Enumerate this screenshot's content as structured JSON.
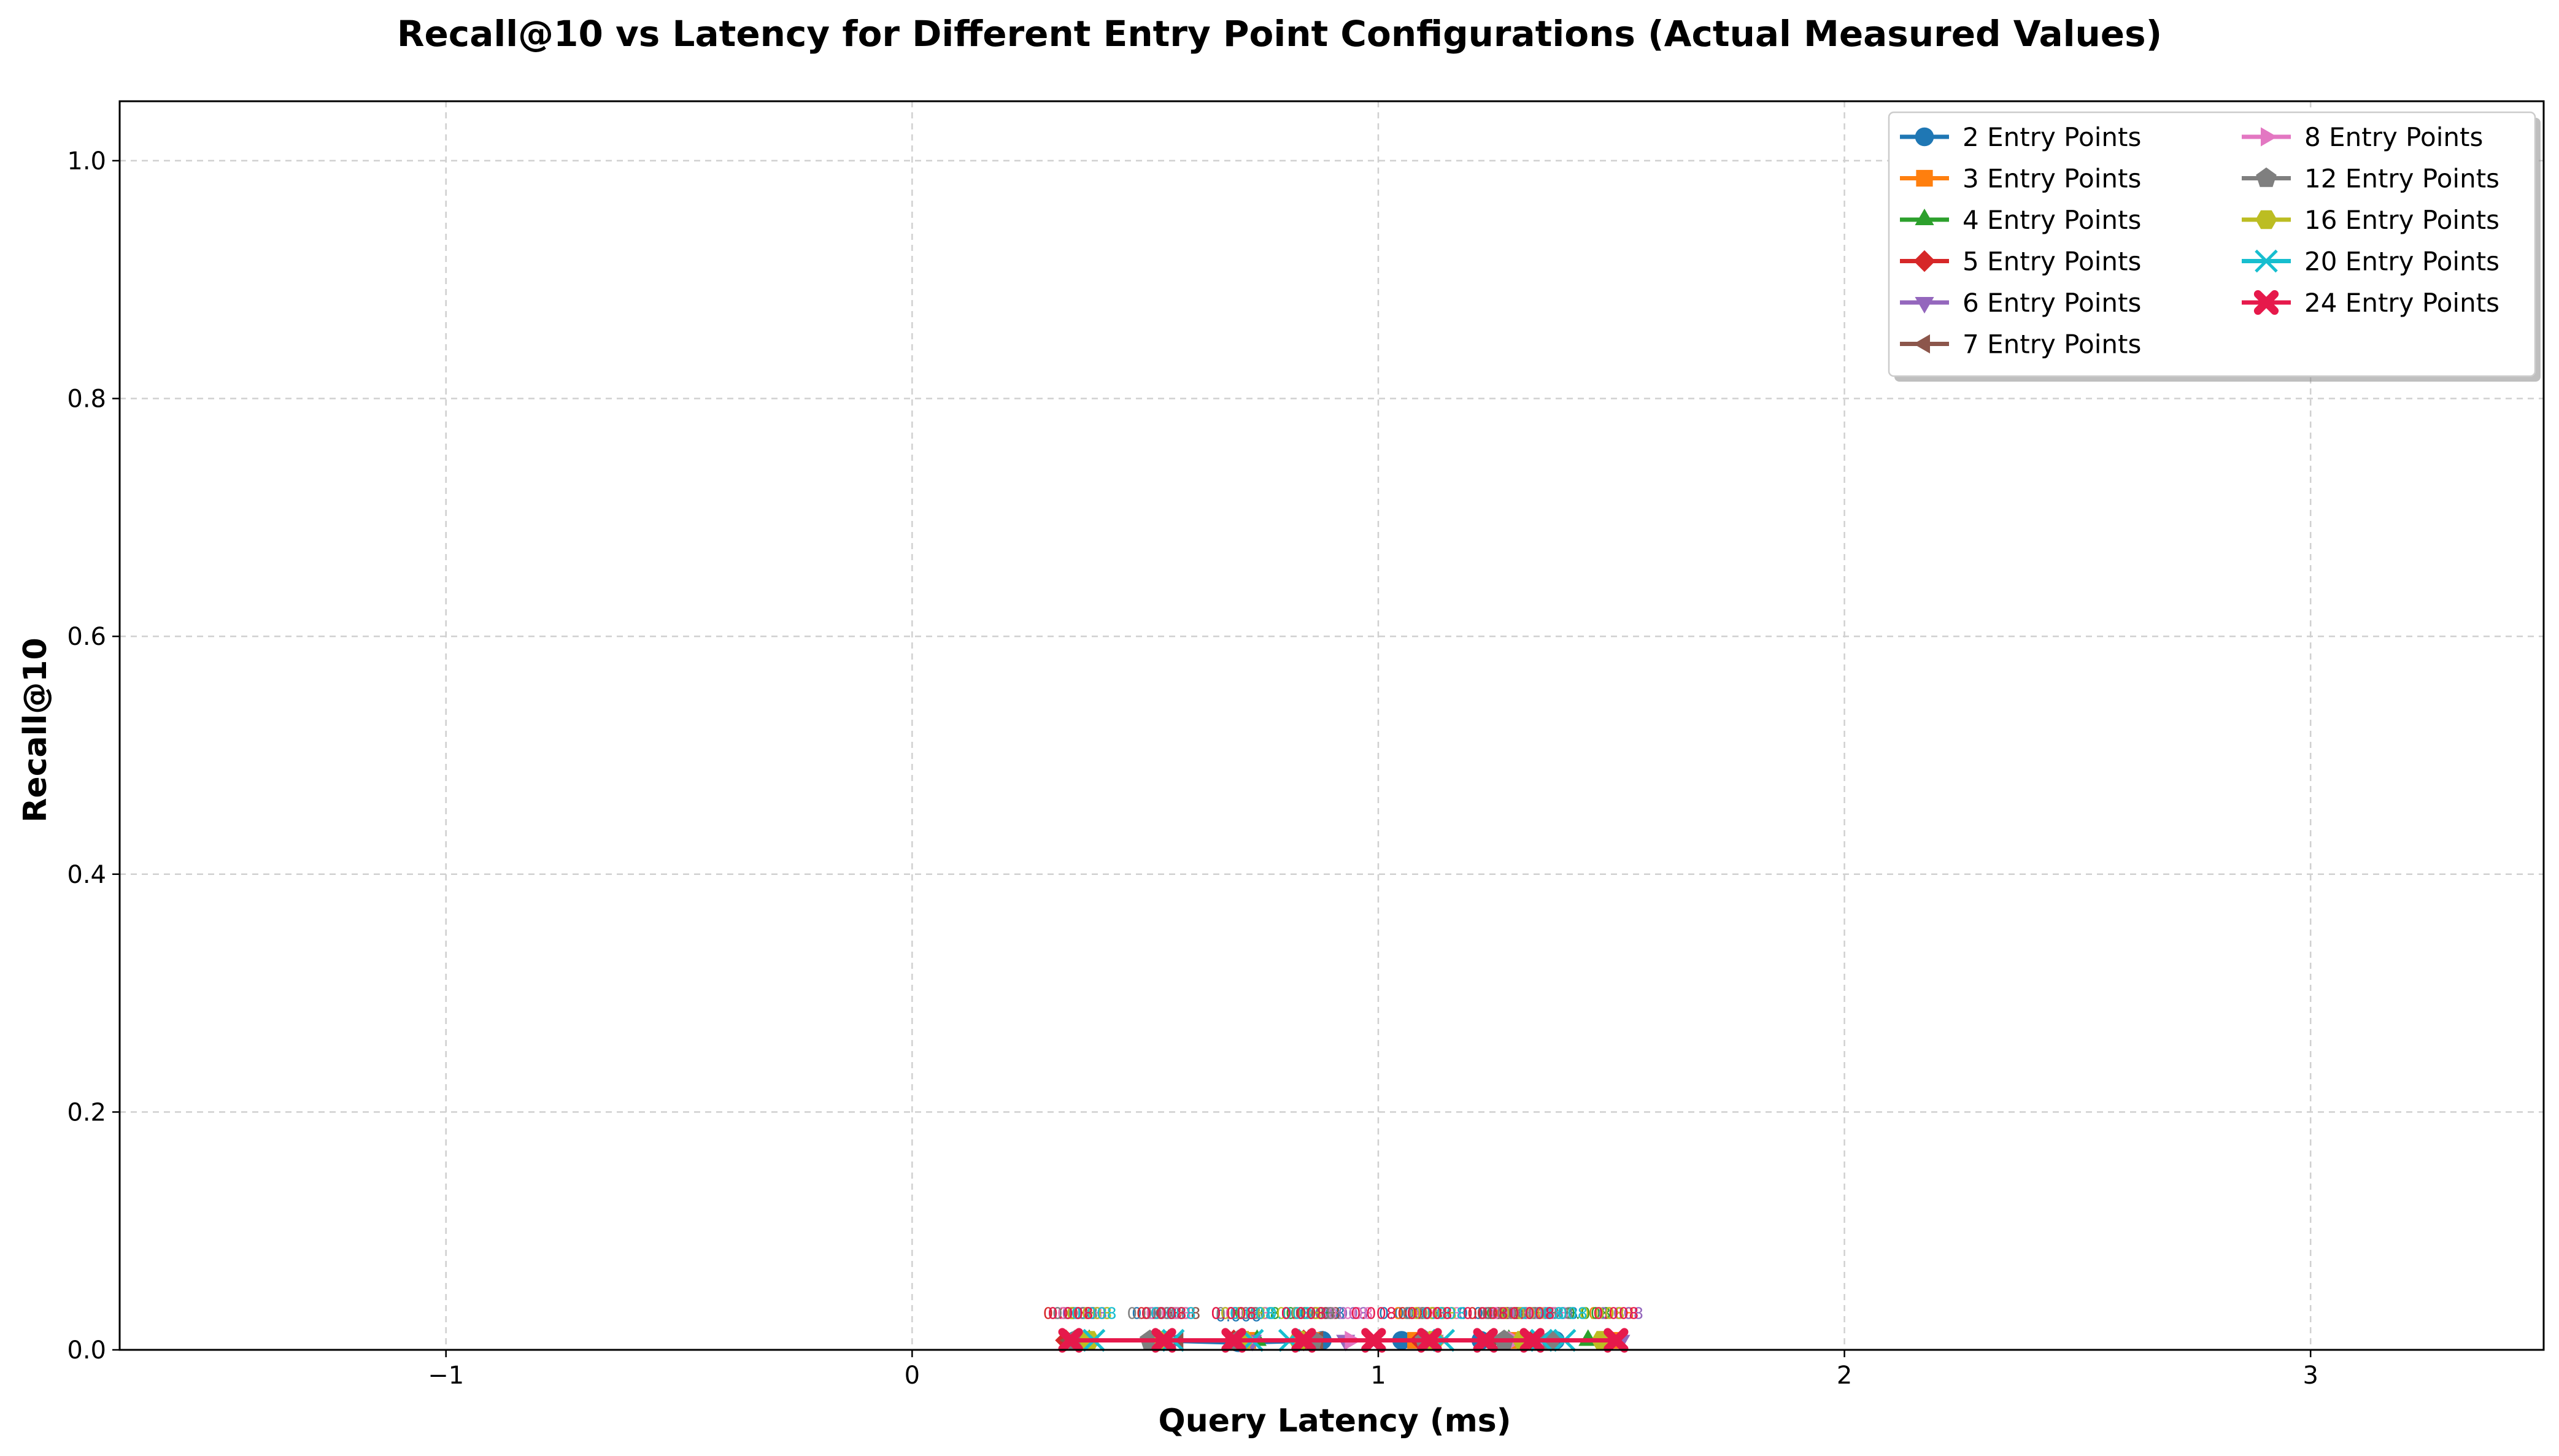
{
  "chart_data": {
    "type": "line",
    "title": "Recall@10 vs Latency for Different Entry Point Configurations (Actual Measured Values)",
    "xlabel": "Query Latency (ms)",
    "ylabel": "Recall@10",
    "xlim": [
      -1.7,
      3.5
    ],
    "ylim": [
      0.0,
      1.05
    ],
    "xticks": [
      -1,
      0,
      1,
      2,
      3
    ],
    "xtick_labels": [
      "−1",
      "0",
      "1",
      "2",
      "3"
    ],
    "yticks": [
      0.0,
      0.2,
      0.4,
      0.6,
      0.8,
      1.0
    ],
    "ytick_labels": [
      "0.0",
      "0.2",
      "0.4",
      "0.6",
      "0.8",
      "1.0"
    ],
    "grid": true,
    "legend_position": "top-right",
    "legend_columns": 2,
    "series": [
      {
        "name": "2 Entry Points",
        "color": "#1f77b4",
        "marker": "circle",
        "x": [
          0.35,
          0.52,
          0.7,
          0.88,
          1.05,
          1.22,
          1.38
        ],
        "y": [
          0.008,
          0.008,
          0.006,
          0.008,
          0.008,
          0.008,
          0.008
        ],
        "labels": [
          "0.008",
          "0.008",
          "0.006",
          "0.008",
          "0.008",
          "0.008",
          "0.008"
        ]
      },
      {
        "name": "3 Entry Points",
        "color": "#ff7f0e",
        "marker": "square",
        "x": [
          0.36,
          0.54,
          0.72,
          0.86,
          1.08,
          1.3,
          1.5
        ],
        "y": [
          0.008,
          0.008,
          0.008,
          0.008,
          0.008,
          0.008,
          0.008
        ],
        "labels": [
          "0.008",
          "0.008",
          "0.008",
          "0.008",
          "0.008",
          "0.008",
          "0.008"
        ]
      },
      {
        "name": "4 Entry Points",
        "color": "#2ca02c",
        "marker": "triangle-up",
        "x": [
          0.38,
          0.55,
          0.74,
          0.85,
          1.1,
          1.28,
          1.45
        ],
        "y": [
          0.008,
          0.008,
          0.008,
          0.008,
          0.008,
          0.008,
          0.008
        ],
        "labels": [
          "0.008",
          "0.008",
          "0.008",
          "0.008",
          "0.008",
          "0.008",
          "0.008"
        ]
      },
      {
        "name": "5 Entry Points",
        "color": "#d62728",
        "marker": "diamond",
        "x": [
          0.33,
          0.53,
          0.69,
          0.84,
          1.09,
          1.24,
          1.33
        ],
        "y": [
          0.008,
          0.008,
          0.008,
          0.008,
          0.008,
          0.008,
          0.008
        ],
        "labels": [
          "0.008",
          "0.008",
          "0.008",
          "0.008",
          "0.008",
          "0.008",
          "0.008"
        ]
      },
      {
        "name": "6 Entry Points",
        "color": "#9467bd",
        "marker": "triangle-down",
        "x": [
          0.37,
          0.56,
          0.73,
          0.93,
          1.12,
          1.32,
          1.52
        ],
        "y": [
          0.008,
          0.008,
          0.008,
          0.008,
          0.008,
          0.008,
          0.008
        ],
        "labels": [
          "0.008",
          "0.008",
          "0.008",
          "0.008",
          "0.008",
          "0.008",
          "0.008"
        ]
      },
      {
        "name": "7 Entry Points",
        "color": "#8c564b",
        "marker": "triangle-left",
        "x": [
          0.34,
          0.57,
          0.71,
          0.87,
          1.11,
          1.26,
          1.34
        ],
        "y": [
          0.008,
          0.008,
          0.008,
          0.008,
          0.008,
          0.008,
          0.008
        ],
        "labels": [
          "0.008",
          "0.008",
          "0.008",
          "0.008",
          "0.008",
          "0.008",
          "0.008"
        ]
      },
      {
        "name": "8 Entry Points",
        "color": "#e377c2",
        "marker": "triangle-right",
        "x": [
          0.36,
          0.55,
          0.72,
          0.94,
          1.13,
          1.29,
          1.36
        ],
        "y": [
          0.008,
          0.008,
          0.008,
          0.008,
          0.008,
          0.008,
          0.008
        ],
        "labels": [
          "0.008",
          "0.008",
          "0.008",
          "0.008",
          "0.008",
          "0.008",
          "0.008"
        ]
      },
      {
        "name": "12 Entry Points",
        "color": "#7f7f7f",
        "marker": "pentagon",
        "x": [
          0.35,
          0.51,
          0.7,
          0.86,
          1.1,
          1.27,
          1.37
        ],
        "y": [
          0.008,
          0.008,
          0.008,
          0.008,
          0.008,
          0.008,
          0.008
        ],
        "labels": [
          "0.008",
          "0.008",
          "0.008",
          "0.008",
          "0.008",
          "0.008",
          "0.008"
        ]
      },
      {
        "name": "16 Entry Points",
        "color": "#bcbd22",
        "marker": "hexagon",
        "x": [
          0.38,
          0.54,
          0.71,
          0.83,
          1.12,
          1.31,
          1.48
        ],
        "y": [
          0.008,
          0.008,
          0.008,
          0.008,
          0.008,
          0.008,
          0.008
        ],
        "labels": [
          "0.008",
          "0.008",
          "0.008",
          "0.008",
          "0.008",
          "0.008",
          "0.008"
        ]
      },
      {
        "name": "20 Entry Points",
        "color": "#17becf",
        "marker": "x",
        "x": [
          0.39,
          0.56,
          0.73,
          0.81,
          1.14,
          1.35,
          1.4
        ],
        "y": [
          0.008,
          0.008,
          0.008,
          0.008,
          0.008,
          0.008,
          0.008
        ],
        "labels": [
          "0.008",
          "0.008",
          "0.008",
          "0.008",
          "0.008",
          "0.008",
          "0.008"
        ]
      },
      {
        "name": "24 Entry Points",
        "color": "#e6194b",
        "marker": "x-filled",
        "x": [
          0.34,
          0.54,
          0.69,
          0.84,
          0.99,
          1.11,
          1.23,
          1.33,
          1.51
        ],
        "y": [
          0.008,
          0.008,
          0.008,
          0.008,
          0.008,
          0.008,
          0.008,
          0.008,
          0.008
        ],
        "labels": [
          "0.008",
          "0.008",
          "0.008",
          "0.008",
          "0.008",
          "0.008",
          "0.008",
          "0.008",
          "0.008"
        ]
      }
    ]
  }
}
